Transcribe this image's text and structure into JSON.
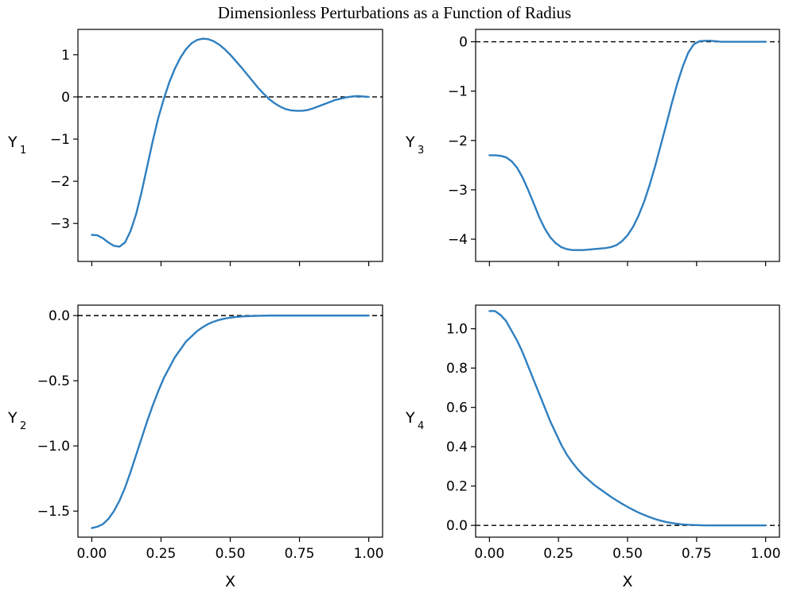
{
  "figure": {
    "suptitle": "Dimensionless Perturbations as a Function of Radius"
  },
  "colors": {
    "line": "#2f7fbf",
    "reference": "#000000"
  },
  "chart_data": [
    {
      "id": "y1",
      "type": "line",
      "title": "",
      "xlabel": "",
      "ylabel": "Y",
      "ylabel_sub": "1",
      "xlim": [
        -0.05,
        1.05
      ],
      "ylim": [
        -3.9,
        1.6
      ],
      "xticks": [
        0.0,
        0.25,
        0.5,
        0.75,
        1.0
      ],
      "xtick_labels": [
        "",
        "",
        "",
        "",
        ""
      ],
      "yticks": [
        1,
        0,
        -1,
        -2,
        -3
      ],
      "ytick_labels": [
        "1",
        "0",
        "−1",
        "−2",
        "−3"
      ],
      "reference_line": 0,
      "series": [
        {
          "name": "Y1",
          "x": [
            0.0,
            0.02,
            0.04,
            0.06,
            0.08,
            0.1,
            0.12,
            0.14,
            0.16,
            0.18,
            0.2,
            0.22,
            0.24,
            0.26,
            0.28,
            0.3,
            0.32,
            0.34,
            0.36,
            0.38,
            0.4,
            0.42,
            0.44,
            0.46,
            0.48,
            0.5,
            0.52,
            0.54,
            0.56,
            0.58,
            0.6,
            0.62,
            0.64,
            0.66,
            0.68,
            0.7,
            0.72,
            0.74,
            0.76,
            0.78,
            0.8,
            0.82,
            0.84,
            0.86,
            0.88,
            0.9,
            0.92,
            0.94,
            0.96,
            0.98,
            1.0
          ],
          "y": [
            -3.27,
            -3.28,
            -3.35,
            -3.45,
            -3.53,
            -3.55,
            -3.45,
            -3.18,
            -2.78,
            -2.25,
            -1.65,
            -1.05,
            -0.5,
            -0.05,
            0.35,
            0.67,
            0.93,
            1.13,
            1.27,
            1.35,
            1.38,
            1.37,
            1.32,
            1.24,
            1.13,
            1.0,
            0.85,
            0.7,
            0.54,
            0.38,
            0.22,
            0.08,
            -0.05,
            -0.15,
            -0.23,
            -0.29,
            -0.32,
            -0.33,
            -0.33,
            -0.31,
            -0.27,
            -0.22,
            -0.17,
            -0.12,
            -0.07,
            -0.04,
            -0.01,
            0.01,
            0.02,
            0.01,
            0.0
          ]
        }
      ]
    },
    {
      "id": "y3",
      "type": "line",
      "title": "",
      "xlabel": "",
      "ylabel": "Y",
      "ylabel_sub": "3",
      "xlim": [
        -0.05,
        1.05
      ],
      "ylim": [
        -4.45,
        0.25
      ],
      "xticks": [
        0.0,
        0.25,
        0.5,
        0.75,
        1.0
      ],
      "xtick_labels": [
        "",
        "",
        "",
        "",
        ""
      ],
      "yticks": [
        0,
        -1,
        -2,
        -3,
        -4
      ],
      "ytick_labels": [
        "0",
        "−1",
        "−2",
        "−3",
        "−4"
      ],
      "reference_line": 0,
      "series": [
        {
          "name": "Y3",
          "x": [
            0.0,
            0.02,
            0.04,
            0.06,
            0.08,
            0.1,
            0.12,
            0.14,
            0.16,
            0.18,
            0.2,
            0.22,
            0.24,
            0.26,
            0.28,
            0.3,
            0.32,
            0.34,
            0.36,
            0.38,
            0.4,
            0.42,
            0.44,
            0.46,
            0.48,
            0.5,
            0.52,
            0.54,
            0.56,
            0.58,
            0.6,
            0.62,
            0.64,
            0.66,
            0.68,
            0.7,
            0.72,
            0.74,
            0.76,
            0.78,
            0.8,
            0.82,
            0.84,
            0.86,
            0.88,
            0.9,
            0.92,
            0.94,
            0.96,
            0.98,
            1.0
          ],
          "y": [
            -2.3,
            -2.3,
            -2.31,
            -2.34,
            -2.42,
            -2.55,
            -2.75,
            -3.0,
            -3.27,
            -3.55,
            -3.78,
            -3.96,
            -4.08,
            -4.16,
            -4.2,
            -4.22,
            -4.22,
            -4.22,
            -4.21,
            -4.2,
            -4.19,
            -4.18,
            -4.16,
            -4.12,
            -4.04,
            -3.92,
            -3.75,
            -3.52,
            -3.24,
            -2.9,
            -2.52,
            -2.1,
            -1.68,
            -1.25,
            -0.85,
            -0.5,
            -0.22,
            -0.05,
            0.01,
            0.02,
            0.02,
            0.01,
            0.0,
            0.0,
            0.0,
            0.0,
            0.0,
            0.0,
            0.0,
            0.0,
            0.0
          ]
        }
      ]
    },
    {
      "id": "y2",
      "type": "line",
      "title": "",
      "xlabel": "X",
      "ylabel": "Y",
      "ylabel_sub": "2",
      "xlim": [
        -0.05,
        1.05
      ],
      "ylim": [
        -1.7,
        0.08
      ],
      "xticks": [
        0.0,
        0.25,
        0.5,
        0.75,
        1.0
      ],
      "xtick_labels": [
        "0.00",
        "0.25",
        "0.50",
        "0.75",
        "1.00"
      ],
      "yticks": [
        0.0,
        -0.5,
        -1.0,
        -1.5
      ],
      "ytick_labels": [
        "0.0",
        "−0.5",
        "−1.0",
        "−1.5"
      ],
      "reference_line": 0,
      "series": [
        {
          "name": "Y2",
          "x": [
            0.0,
            0.02,
            0.04,
            0.06,
            0.08,
            0.1,
            0.12,
            0.14,
            0.16,
            0.18,
            0.2,
            0.22,
            0.24,
            0.26,
            0.28,
            0.3,
            0.32,
            0.34,
            0.36,
            0.38,
            0.4,
            0.42,
            0.44,
            0.46,
            0.48,
            0.5,
            0.52,
            0.54,
            0.56,
            0.58,
            0.6,
            0.62,
            0.64,
            0.66,
            0.68,
            0.7,
            0.72,
            0.74,
            0.76,
            0.78,
            0.8,
            0.82,
            0.84,
            0.86,
            0.88,
            0.9,
            0.92,
            0.94,
            0.96,
            0.98,
            1.0
          ],
          "y": [
            -1.63,
            -1.62,
            -1.6,
            -1.56,
            -1.5,
            -1.42,
            -1.32,
            -1.2,
            -1.07,
            -0.94,
            -0.81,
            -0.69,
            -0.58,
            -0.48,
            -0.4,
            -0.32,
            -0.26,
            -0.2,
            -0.16,
            -0.12,
            -0.09,
            -0.065,
            -0.047,
            -0.033,
            -0.023,
            -0.016,
            -0.011,
            -0.007,
            -0.005,
            -0.003,
            -0.002,
            -0.001,
            0.0,
            0.0,
            0.0,
            0.0,
            0.0,
            0.0,
            0.0,
            0.0,
            0.0,
            0.0,
            0.0,
            0.0,
            0.0,
            0.0,
            0.0,
            0.0,
            0.0,
            0.0,
            0.0
          ]
        }
      ]
    },
    {
      "id": "y4",
      "type": "line",
      "title": "",
      "xlabel": "X",
      "ylabel": "Y",
      "ylabel_sub": "4",
      "xlim": [
        -0.05,
        1.05
      ],
      "ylim": [
        -0.06,
        1.12
      ],
      "xticks": [
        0.0,
        0.25,
        0.5,
        0.75,
        1.0
      ],
      "xtick_labels": [
        "0.00",
        "0.25",
        "0.50",
        "0.75",
        "1.00"
      ],
      "yticks": [
        1.0,
        0.8,
        0.6,
        0.4,
        0.2,
        0.0
      ],
      "ytick_labels": [
        "1.0",
        "0.8",
        "0.6",
        "0.4",
        "0.2",
        "0.0"
      ],
      "reference_line": 0,
      "series": [
        {
          "name": "Y4",
          "x": [
            0.0,
            0.02,
            0.04,
            0.06,
            0.08,
            0.1,
            0.12,
            0.14,
            0.16,
            0.18,
            0.2,
            0.22,
            0.24,
            0.26,
            0.28,
            0.3,
            0.32,
            0.34,
            0.36,
            0.38,
            0.4,
            0.42,
            0.44,
            0.46,
            0.48,
            0.5,
            0.52,
            0.54,
            0.56,
            0.58,
            0.6,
            0.62,
            0.64,
            0.66,
            0.68,
            0.7,
            0.72,
            0.74,
            0.76,
            0.78,
            0.8,
            0.82,
            0.84,
            0.86,
            0.88,
            0.9,
            0.92,
            0.94,
            0.96,
            0.98,
            1.0
          ],
          "y": [
            1.09,
            1.09,
            1.07,
            1.04,
            0.99,
            0.94,
            0.88,
            0.81,
            0.74,
            0.67,
            0.6,
            0.53,
            0.47,
            0.41,
            0.36,
            0.32,
            0.285,
            0.255,
            0.23,
            0.205,
            0.185,
            0.165,
            0.145,
            0.127,
            0.11,
            0.094,
            0.079,
            0.065,
            0.053,
            0.042,
            0.032,
            0.024,
            0.017,
            0.012,
            0.008,
            0.005,
            0.003,
            0.002,
            0.001,
            0.0,
            0.0,
            0.0,
            0.0,
            0.0,
            0.0,
            0.0,
            0.0,
            0.0,
            0.0,
            0.0,
            0.0
          ]
        }
      ]
    }
  ]
}
